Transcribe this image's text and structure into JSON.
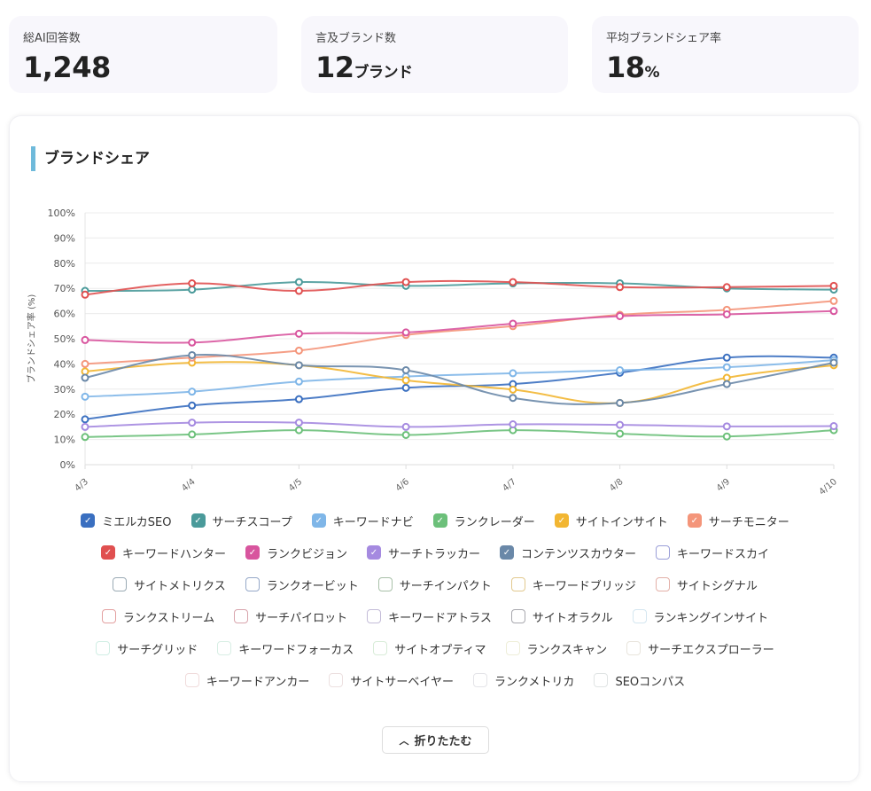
{
  "stats": [
    {
      "label": "総AI回答数",
      "value": "1,248",
      "unit": ""
    },
    {
      "label": "言及ブランド数",
      "value": "12",
      "unit": "ブランド"
    },
    {
      "label": "平均ブランドシェア率",
      "value": "18",
      "unit": "%"
    }
  ],
  "panel": {
    "title": "ブランドシェア",
    "collapse_label": "折りたたむ",
    "collapse_icon": "chevron-up-icon"
  },
  "chart_data": {
    "type": "line",
    "ylabel": "ブランドシェア率 (%)",
    "ylim": [
      0,
      100
    ],
    "yticks": [
      "0%",
      "10%",
      "20%",
      "30%",
      "40%",
      "50%",
      "60%",
      "70%",
      "80%",
      "90%",
      "100%"
    ],
    "grid": true,
    "legend_position": "bottom",
    "x": [
      "4/3",
      "4/4",
      "4/5",
      "4/6",
      "4/7",
      "4/8",
      "4/9",
      "4/10"
    ],
    "series": [
      {
        "name": "ミエルカSEO",
        "color": "#3a6fc0",
        "checked": true,
        "values": [
          18,
          23.5,
          26,
          30.5,
          32,
          36.5,
          42.5,
          42.5
        ]
      },
      {
        "name": "サーチスコープ",
        "color": "#4a9a9a",
        "checked": true,
        "values": [
          69,
          69.5,
          72.5,
          71,
          72,
          72,
          70,
          69.5
        ]
      },
      {
        "name": "キーワードナビ",
        "color": "#7fb6e8",
        "checked": true,
        "values": [
          27,
          29,
          33,
          35,
          36.3,
          37.5,
          38.7,
          41.5
        ]
      },
      {
        "name": "ランクレーダー",
        "color": "#6cc07a",
        "checked": true,
        "values": [
          11,
          12,
          13.7,
          11.8,
          13.7,
          12.3,
          11.2,
          13.7
        ]
      },
      {
        "name": "サイトインサイト",
        "color": "#f2b632",
        "checked": true,
        "values": [
          37,
          40.5,
          39.5,
          33.5,
          29.8,
          24.5,
          34.5,
          39.5
        ]
      },
      {
        "name": "サーチモニター",
        "color": "#f4957a",
        "checked": true,
        "values": [
          40,
          42.5,
          45.3,
          51.5,
          55,
          59.5,
          61.5,
          65
        ]
      },
      {
        "name": "キーワードハンター",
        "color": "#e05050",
        "checked": true,
        "values": [
          67.5,
          72,
          69,
          72.5,
          72.5,
          70.5,
          70.5,
          71
        ]
      },
      {
        "name": "ランクビジョン",
        "color": "#d8559e",
        "checked": true,
        "values": [
          49.5,
          48.5,
          52,
          52.5,
          56,
          59,
          59.7,
          61
        ]
      },
      {
        "name": "サーチトラッカー",
        "color": "#a58ae0",
        "checked": true,
        "values": [
          15,
          16.7,
          16.7,
          15,
          16,
          15.8,
          15.2,
          15.3
        ]
      },
      {
        "name": "コンテンツスカウター",
        "color": "#6a88a8",
        "checked": true,
        "values": [
          34.5,
          43.5,
          39.5,
          37.5,
          26.5,
          24.5,
          32,
          40.5
        ]
      },
      {
        "name": "キーワードスカイ",
        "color": "#9a9ed8",
        "checked": false
      },
      {
        "name": "サイトメトリクス",
        "color": "#9aaab4",
        "checked": false
      },
      {
        "name": "ランクオービット",
        "color": "#95a8c8",
        "checked": false
      },
      {
        "name": "サーチインパクト",
        "color": "#a8c0a8",
        "checked": false
      },
      {
        "name": "キーワードブリッジ",
        "color": "#e2c98f",
        "checked": false
      },
      {
        "name": "サイトシグナル",
        "color": "#e3b0a8",
        "checked": false
      },
      {
        "name": "ランクストリーム",
        "color": "#e3a0a0",
        "checked": false
      },
      {
        "name": "サーチパイロット",
        "color": "#d8a4ac",
        "checked": false
      },
      {
        "name": "キーワードアトラス",
        "color": "#c4bcd8",
        "checked": false
      },
      {
        "name": "サイトオラクル",
        "color": "#a8a8ae",
        "checked": false
      },
      {
        "name": "ランキングインサイト",
        "color": "#d4e6f0",
        "checked": false
      },
      {
        "name": "サーチグリッド",
        "color": "#d0eee4",
        "checked": false
      },
      {
        "name": "キーワードフォーカス",
        "color": "#d8eee4",
        "checked": false
      },
      {
        "name": "サイトオプティマ",
        "color": "#d8ecd8",
        "checked": false
      },
      {
        "name": "ランクスキャン",
        "color": "#eeeed8",
        "checked": false
      },
      {
        "name": "サーチエクスプローラー",
        "color": "#e8e4dc",
        "checked": false
      },
      {
        "name": "キーワードアンカー",
        "color": "#f0dcdc",
        "checked": false
      },
      {
        "name": "サイトサーベイヤー",
        "color": "#ece0e0",
        "checked": false
      },
      {
        "name": "ランクメトリカ",
        "color": "#e4e4e8",
        "checked": false
      },
      {
        "name": "SEOコンパス",
        "color": "#e0e4e4",
        "checked": false
      }
    ]
  }
}
